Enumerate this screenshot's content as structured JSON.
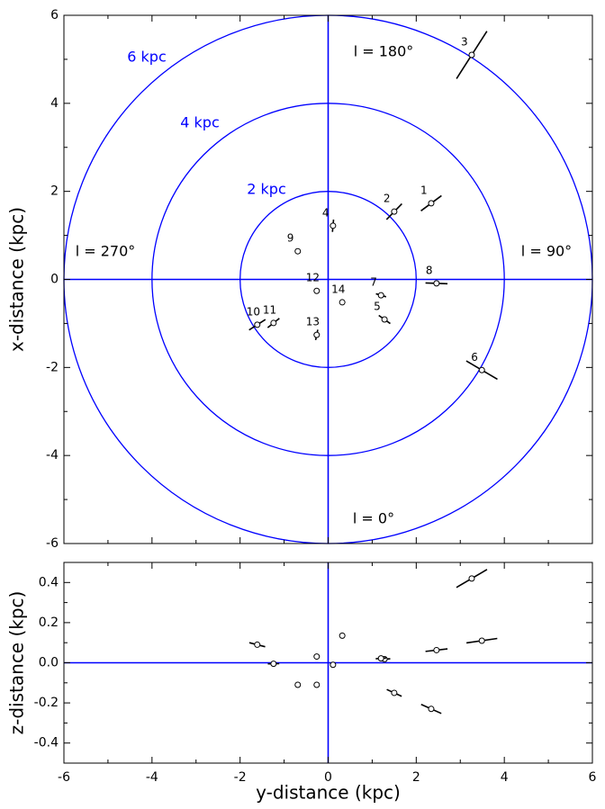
{
  "chart_data": [
    {
      "type": "scatter",
      "ylabel": "x-distance (kpc)",
      "x": [
        2.34,
        1.5,
        3.26,
        0.11,
        1.28,
        3.49,
        1.2,
        2.46,
        -0.69,
        -1.61,
        -1.24,
        -0.26,
        -0.26,
        0.32
      ],
      "y": [
        1.73,
        1.54,
        5.1,
        1.22,
        -0.91,
        -2.06,
        -0.36,
        -0.09,
        0.64,
        -1.03,
        -0.99,
        -0.26,
        -1.26,
        -0.52
      ],
      "errors": [
        0.29,
        0.25,
        0.64,
        0.14,
        0.16,
        0.41,
        0.12,
        0.25,
        0.07,
        0.22,
        0.17,
        0.03,
        0.12,
        0.05
      ],
      "labels": [
        "1",
        "2",
        "3",
        "4",
        "5",
        "6",
        "7",
        "8",
        "9",
        "10",
        "11",
        "12",
        "13",
        "14"
      ],
      "rings": [
        {
          "r": 6,
          "label": "6 kpc"
        },
        {
          "r": 4,
          "label": "4 kpc"
        },
        {
          "r": 2,
          "label": "2 kpc"
        }
      ],
      "annotations": [
        "l = 180°",
        "l = 90°",
        "l = 0°",
        "l = 270°"
      ],
      "color": "#000000",
      "axis_color": "#0000ff",
      "xlim": [
        -6,
        6
      ],
      "ylim": [
        -6,
        6
      ],
      "xticks": [
        -6,
        -4,
        -2,
        0,
        2,
        4,
        6
      ],
      "yticks": [
        -6,
        -4,
        -2,
        0,
        2,
        4,
        6
      ],
      "minor_xticks": [
        -5,
        -3,
        -1,
        1,
        3,
        5
      ],
      "minor_yticks": [
        -5,
        -3,
        -1,
        1,
        3,
        5
      ]
    },
    {
      "type": "scatter",
      "xlabel": "y-distance (kpc)",
      "ylabel": "z-distance (kpc)",
      "x": [
        2.34,
        1.5,
        3.26,
        0.11,
        1.28,
        3.49,
        1.2,
        2.46,
        -0.69,
        -1.61,
        -1.24,
        -0.26,
        -0.26,
        0.32
      ],
      "y": [
        -0.23,
        -0.15,
        0.42,
        -0.01,
        0.018,
        0.11,
        0.022,
        0.063,
        -0.11,
        0.09,
        -0.005,
        0.031,
        -0.11,
        0.135
      ],
      "errors": [
        0.23,
        0.17,
        0.35,
        0.01,
        0.13,
        0.35,
        0.12,
        0.25,
        0.05,
        0.18,
        0.13,
        0.02,
        0.02,
        0.03
      ],
      "color": "#000000",
      "axis_color": "#0000ff",
      "xlim": [
        -6,
        6
      ],
      "ylim": [
        -0.5,
        0.5
      ],
      "xticks": [
        -6,
        -4,
        -2,
        0,
        2,
        4,
        6
      ],
      "yticks": [
        -0.4,
        -0.2,
        {
          "value": 0,
          "label": "0.0"
        },
        0.2,
        0.4
      ],
      "minor_xticks": [
        -5,
        -3,
        -1,
        1,
        3,
        5
      ],
      "minor_yticks": [
        -0.3,
        -0.1,
        0.1,
        0.3
      ]
    }
  ]
}
